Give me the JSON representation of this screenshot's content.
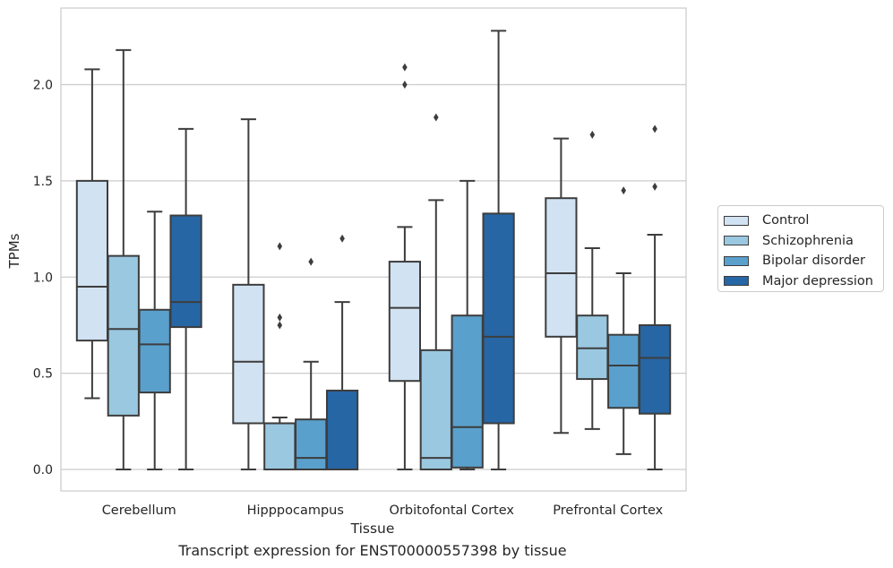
{
  "chart_data": {
    "type": "box",
    "title": "",
    "xlabel": "Tissue",
    "ylabel": "TPMs",
    "caption": "Transcript expression for ENST00000557398 by tissue",
    "categories": [
      "Cerebellum",
      "Hipppocampus",
      "Orbitofontal Cortex",
      "Prefrontal Cortex"
    ],
    "ylim": [
      -0.11,
      2.38
    ],
    "yticks": [
      0.0,
      0.5,
      1.0,
      1.5,
      2.0
    ],
    "ytick_labels": [
      "0.0",
      "0.5",
      "1.0",
      "1.5",
      "2.0"
    ],
    "grid": true,
    "legend_position": "right",
    "series": [
      {
        "name": "Control",
        "color": "#d1e2f2",
        "boxes": [
          {
            "whisker_low": 0.37,
            "q1": 0.67,
            "median": 0.95,
            "q3": 1.5,
            "whisker_high": 2.08,
            "outliers": []
          },
          {
            "whisker_low": 0.0,
            "q1": 0.24,
            "median": 0.56,
            "q3": 0.96,
            "whisker_high": 1.82,
            "outliers": []
          },
          {
            "whisker_low": 0.0,
            "q1": 0.46,
            "median": 0.84,
            "q3": 1.08,
            "whisker_high": 1.26,
            "outliers": [
              2.0,
              2.09
            ]
          },
          {
            "whisker_low": 0.19,
            "q1": 0.69,
            "median": 1.02,
            "q3": 1.41,
            "whisker_high": 1.72,
            "outliers": []
          }
        ]
      },
      {
        "name": "Schizophrenia",
        "color": "#9ac8e0",
        "boxes": [
          {
            "whisker_low": 0.0,
            "q1": 0.28,
            "median": 0.73,
            "q3": 1.11,
            "whisker_high": 2.18,
            "outliers": []
          },
          {
            "whisker_low": 0.0,
            "q1": 0.0,
            "median": 0.24,
            "q3": 0.24,
            "whisker_high": 0.27,
            "outliers": [
              0.75,
              0.79,
              1.16
            ]
          },
          {
            "whisker_low": 0.0,
            "q1": 0.0,
            "median": 0.06,
            "q3": 0.62,
            "whisker_high": 1.4,
            "outliers": [
              1.83
            ]
          },
          {
            "whisker_low": 0.21,
            "q1": 0.47,
            "median": 0.63,
            "q3": 0.8,
            "whisker_high": 1.15,
            "outliers": [
              1.74
            ]
          }
        ]
      },
      {
        "name": "Bipolar disorder",
        "color": "#5aa0cd",
        "boxes": [
          {
            "whisker_low": 0.0,
            "q1": 0.4,
            "median": 0.65,
            "q3": 0.83,
            "whisker_high": 1.34,
            "outliers": []
          },
          {
            "whisker_low": 0.0,
            "q1": 0.0,
            "median": 0.06,
            "q3": 0.26,
            "whisker_high": 0.56,
            "outliers": [
              1.08
            ]
          },
          {
            "whisker_low": 0.0,
            "q1": 0.01,
            "median": 0.22,
            "q3": 0.8,
            "whisker_high": 1.5,
            "outliers": []
          },
          {
            "whisker_low": 0.08,
            "q1": 0.32,
            "median": 0.54,
            "q3": 0.7,
            "whisker_high": 1.02,
            "outliers": [
              1.45
            ]
          }
        ]
      },
      {
        "name": "Major depression",
        "color": "#2666a5",
        "boxes": [
          {
            "whisker_low": 0.0,
            "q1": 0.74,
            "median": 0.87,
            "q3": 1.32,
            "whisker_high": 1.77,
            "outliers": []
          },
          {
            "whisker_low": 0.0,
            "q1": 0.0,
            "median": 0.0,
            "q3": 0.41,
            "whisker_high": 0.87,
            "outliers": [
              1.2
            ]
          },
          {
            "whisker_low": 0.0,
            "q1": 0.24,
            "median": 0.69,
            "q3": 1.33,
            "whisker_high": 2.28,
            "outliers": []
          },
          {
            "whisker_low": 0.0,
            "q1": 0.29,
            "median": 0.58,
            "q3": 0.75,
            "whisker_high": 1.22,
            "outliers": [
              1.47,
              1.77
            ]
          }
        ]
      }
    ]
  }
}
